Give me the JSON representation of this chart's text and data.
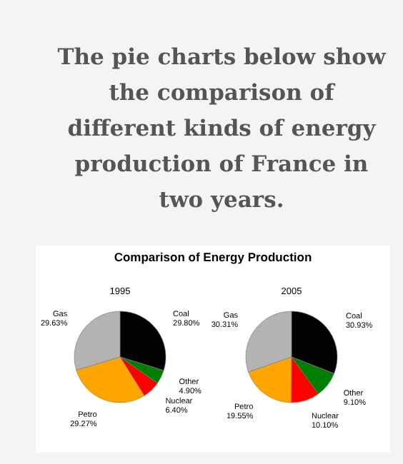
{
  "chart_data": [
    {
      "type": "pie",
      "title": "1995",
      "annotations": [
        "The pie charts below show the comparison of different kinds of energy production of France in two years.",
        "Comparison of Energy Production"
      ],
      "categories": [
        "Coal",
        "Other",
        "Nuclear",
        "Petro",
        "Gas"
      ],
      "values": [
        29.8,
        4.9,
        6.4,
        29.27,
        29.63
      ],
      "value_labels": [
        "29.80%",
        "4.90%",
        "6.40%",
        "29.27%",
        "29.63%"
      ],
      "colors": [
        "#000000",
        "#008000",
        "#ff0000",
        "#ffa500",
        "#b3b3b3"
      ]
    },
    {
      "type": "pie",
      "title": "2005",
      "categories": [
        "Coal",
        "Other",
        "Nuclear",
        "Petro",
        "Gas"
      ],
      "values": [
        30.93,
        9.1,
        10.1,
        19.55,
        30.31
      ],
      "value_labels": [
        "30.93%",
        "9.10%",
        "10.10%",
        "19.55%",
        "30.31%"
      ],
      "colors": [
        "#000000",
        "#008000",
        "#ff0000",
        "#ffa500",
        "#b3b3b3"
      ]
    }
  ]
}
